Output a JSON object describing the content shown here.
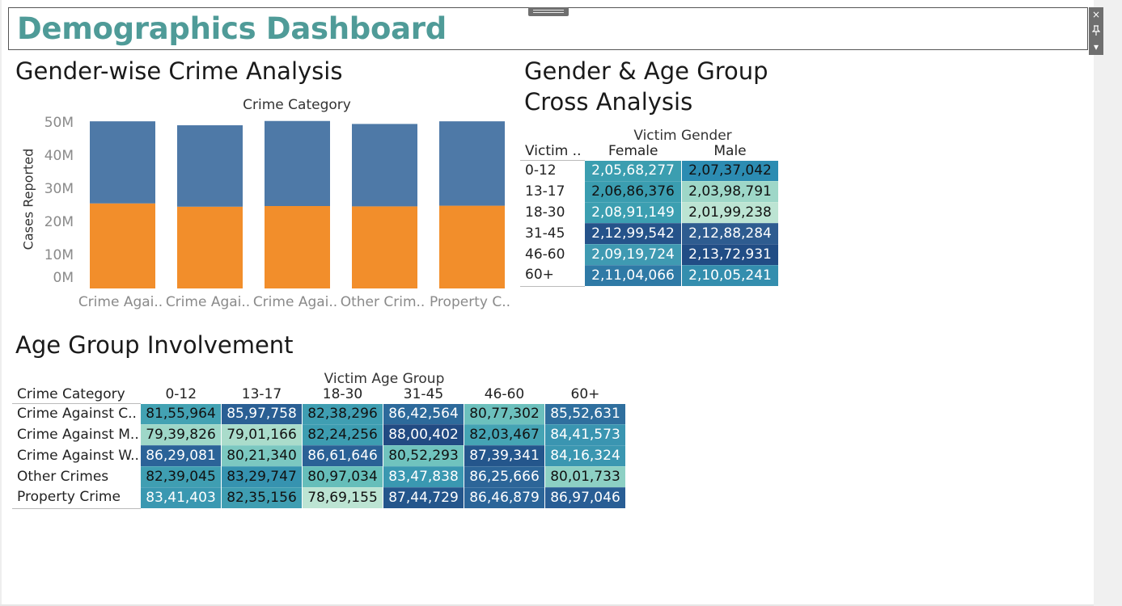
{
  "dashboard": {
    "title": "Demographics Dashboard"
  },
  "controls": {
    "close_icon": "×",
    "pin_icon": "📌",
    "menu_icon": "▾"
  },
  "colors": {
    "title": "#4f9b98",
    "female": "#f28e2b",
    "male": "#4e79a7"
  },
  "gender_chart": {
    "title": "Gender-wise Crime Analysis",
    "header": "Crime Category",
    "ylabel": "Cases Reported",
    "y_ticks": [
      "50M",
      "40M",
      "30M",
      "20M",
      "10M",
      "0M"
    ],
    "x_labels": [
      "Crime Agai..",
      "Crime Agai..",
      "Crime Agai..",
      "Other Crim..",
      "Property C.."
    ]
  },
  "chart_data": {
    "type": "bar",
    "stacked": true,
    "categories": [
      "Crime Agai..",
      "Crime Agai..",
      "Crime Agai..",
      "Other Crim..",
      "Property C.."
    ],
    "series": [
      {
        "color": "#f28e2b",
        "values": [
          25800000,
          24800000,
          25000000,
          24900000,
          25100000
        ]
      },
      {
        "color": "#4e79a7",
        "values": [
          24900000,
          24700000,
          25800000,
          25000000,
          25600000
        ]
      }
    ],
    "ylabel": "Cases Reported",
    "ylim": [
      0,
      50000000
    ],
    "y_ticks": [
      "0M",
      "10M",
      "20M",
      "30M",
      "40M",
      "50M"
    ]
  },
  "cross_analysis": {
    "title_line1": "Gender & Age Group",
    "title_line2": "Cross Analysis",
    "column_header": "Victim Gender",
    "row_header": "Victim ..",
    "columns": [
      "Female",
      "Male"
    ],
    "rows": [
      {
        "label": "0-12",
        "cells": [
          {
            "text": "2,05,68,277",
            "bg": "#3b9eb0",
            "fg": "#ffffff"
          },
          {
            "text": "2,07,37,042",
            "bg": "#2c8cb2",
            "fg": "#111111"
          }
        ]
      },
      {
        "label": "13-17",
        "cells": [
          {
            "text": "2,06,86,376",
            "bg": "#3a9db0",
            "fg": "#111111"
          },
          {
            "text": "2,03,98,791",
            "bg": "#9ed7c8",
            "fg": "#111111"
          }
        ]
      },
      {
        "label": "18-30",
        "cells": [
          {
            "text": "2,08,91,149",
            "bg": "#3c9fb1",
            "fg": "#ffffff"
          },
          {
            "text": "2,01,99,238",
            "bg": "#bce4d3",
            "fg": "#111111"
          }
        ]
      },
      {
        "label": "31-45",
        "cells": [
          {
            "text": "2,12,99,542",
            "bg": "#25538a",
            "fg": "#ffffff"
          },
          {
            "text": "2,12,88,284",
            "bg": "#2e5c90",
            "fg": "#ffffff"
          }
        ]
      },
      {
        "label": "46-60",
        "cells": [
          {
            "text": "2,09,19,724",
            "bg": "#3f9ab2",
            "fg": "#ffffff"
          },
          {
            "text": "2,13,72,931",
            "bg": "#214d85",
            "fg": "#ffffff"
          }
        ]
      },
      {
        "label": "60+",
        "cells": [
          {
            "text": "2,11,04,066",
            "bg": "#2f7aa6",
            "fg": "#ffffff"
          },
          {
            "text": "2,10,05,241",
            "bg": "#348eae",
            "fg": "#ffffff"
          }
        ]
      }
    ]
  },
  "age_involvement": {
    "title": "Age Group Involvement",
    "column_header": "Victim Age Group",
    "row_header": "Crime Category",
    "columns": [
      "0-12",
      "13-17",
      "18-30",
      "31-45",
      "46-60",
      "60+"
    ],
    "rows": [
      {
        "label": "Crime Against C..",
        "cells": [
          {
            "text": "81,55,964",
            "bg": "#43a2b3",
            "fg": "#111111"
          },
          {
            "text": "85,97,758",
            "bg": "#2a5f94",
            "fg": "#ffffff"
          },
          {
            "text": "82,38,296",
            "bg": "#3f9eb2",
            "fg": "#111111"
          },
          {
            "text": "86,42,564",
            "bg": "#2d6a9b",
            "fg": "#ffffff"
          },
          {
            "text": "80,77,302",
            "bg": "#6cc0bd",
            "fg": "#111111"
          },
          {
            "text": "85,52,631",
            "bg": "#2f6f9e",
            "fg": "#ffffff"
          }
        ]
      },
      {
        "label": "Crime Against M..",
        "cells": [
          {
            "text": "79,39,826",
            "bg": "#9ed7c8",
            "fg": "#111111"
          },
          {
            "text": "79,01,166",
            "bg": "#aadccb",
            "fg": "#111111"
          },
          {
            "text": "82,24,256",
            "bg": "#3d9db1",
            "fg": "#111111"
          },
          {
            "text": "88,00,402",
            "bg": "#214a82",
            "fg": "#ffffff"
          },
          {
            "text": "82,03,467",
            "bg": "#45a4b4",
            "fg": "#111111"
          },
          {
            "text": "84,41,573",
            "bg": "#3a95b1",
            "fg": "#ffffff"
          }
        ]
      },
      {
        "label": "Crime Against W..",
        "cells": [
          {
            "text": "86,29,081",
            "bg": "#2b6398",
            "fg": "#ffffff"
          },
          {
            "text": "80,21,340",
            "bg": "#7cc8c1",
            "fg": "#111111"
          },
          {
            "text": "86,61,646",
            "bg": "#2a6196",
            "fg": "#ffffff"
          },
          {
            "text": "80,52,293",
            "bg": "#70c3be",
            "fg": "#111111"
          },
          {
            "text": "87,39,341",
            "bg": "#24568c",
            "fg": "#ffffff"
          },
          {
            "text": "84,16,324",
            "bg": "#3b97b1",
            "fg": "#ffffff"
          }
        ]
      },
      {
        "label": "Other Crimes",
        "cells": [
          {
            "text": "82,39,045",
            "bg": "#3f9eb2",
            "fg": "#111111"
          },
          {
            "text": "83,29,747",
            "bg": "#3693b0",
            "fg": "#111111"
          },
          {
            "text": "80,97,034",
            "bg": "#66beba",
            "fg": "#111111"
          },
          {
            "text": "83,47,838",
            "bg": "#3a98b1",
            "fg": "#ffffff"
          },
          {
            "text": "86,25,666",
            "bg": "#2c6598",
            "fg": "#ffffff"
          },
          {
            "text": "80,01,733",
            "bg": "#8dd0c4",
            "fg": "#111111"
          }
        ]
      },
      {
        "label": "Property Crime",
        "cells": [
          {
            "text": "83,41,403",
            "bg": "#3a98b1",
            "fg": "#ffffff"
          },
          {
            "text": "82,35,156",
            "bg": "#3f9eb2",
            "fg": "#111111"
          },
          {
            "text": "78,69,155",
            "bg": "#bce4d3",
            "fg": "#111111"
          },
          {
            "text": "87,44,729",
            "bg": "#24568c",
            "fg": "#ffffff"
          },
          {
            "text": "86,46,879",
            "bg": "#2b6599",
            "fg": "#ffffff"
          },
          {
            "text": "86,97,046",
            "bg": "#295e95",
            "fg": "#ffffff"
          }
        ]
      }
    ]
  }
}
